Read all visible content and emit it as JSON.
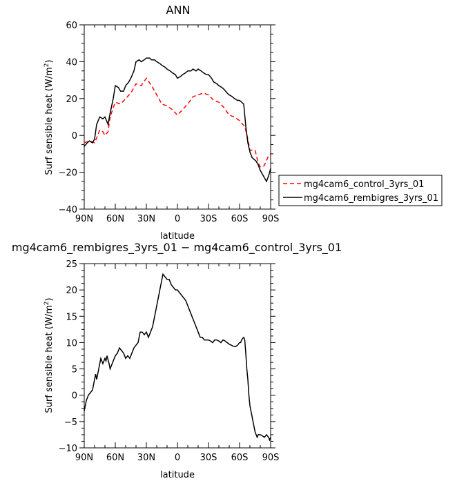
{
  "chart_data": [
    {
      "type": "line",
      "title": "ANN",
      "xlabel": "latitude",
      "ylabel": "Surf sensible heat (W/m²)",
      "ylabel_main": "Surf sensible heat (W/m",
      "ylabel_sup": "2",
      "ylabel_close": ")",
      "xlim": [
        90,
        -90
      ],
      "ylim": [
        -40,
        60
      ],
      "x_ticks": [
        90,
        60,
        30,
        0,
        -30,
        -60,
        -90
      ],
      "x_tick_labels": [
        "90N",
        "60N",
        "30N",
        "0",
        "30S",
        "60S",
        "90S"
      ],
      "y_ticks": [
        -40,
        -20,
        0,
        20,
        40,
        60
      ],
      "y_tick_labels": [
        "−40",
        "−20",
        "0",
        "20",
        "40",
        "60"
      ],
      "legend_position": "right",
      "series": [
        {
          "name": "mg4cam6_control_3yrs_01",
          "color": "#ff0000",
          "dash": "dashed",
          "x": [
            90,
            85,
            80,
            77,
            75,
            72,
            70,
            67,
            65,
            62,
            60,
            55,
            50,
            45,
            40,
            35,
            30,
            25,
            20,
            15,
            10,
            5,
            0,
            -5,
            -10,
            -15,
            -20,
            -25,
            -30,
            -35,
            -40,
            -45,
            -50,
            -55,
            -60,
            -63,
            -65,
            -68,
            -70,
            -72,
            -75,
            -78,
            -80,
            -83,
            -85,
            -88,
            -90
          ],
          "y": [
            -4,
            -3,
            -4,
            0,
            3,
            2,
            0,
            2,
            10,
            15,
            18,
            17,
            20,
            23,
            28,
            27,
            31,
            27,
            22,
            17,
            16,
            14,
            11,
            14,
            17,
            21,
            22,
            23,
            22,
            19,
            18,
            15,
            11,
            10,
            8,
            6,
            5,
            -2,
            -8,
            -8,
            -8,
            -15,
            -17,
            -17,
            -15,
            -11,
            -10
          ]
        },
        {
          "name": "mg4cam6_rembigres_3yrs_01",
          "color": "#000000",
          "dash": "solid",
          "x": [
            90,
            87,
            85,
            82,
            80,
            78,
            75,
            72,
            70,
            67,
            65,
            62,
            60,
            57,
            55,
            52,
            50,
            47,
            45,
            42,
            40,
            37,
            35,
            32,
            30,
            27,
            25,
            22,
            20,
            17,
            15,
            12,
            10,
            7,
            5,
            2,
            0,
            -3,
            -5,
            -8,
            -10,
            -13,
            -15,
            -18,
            -20,
            -23,
            -25,
            -28,
            -30,
            -33,
            -35,
            -38,
            -40,
            -43,
            -45,
            -48,
            -50,
            -53,
            -55,
            -58,
            -60,
            -62,
            -64,
            -66,
            -68,
            -70,
            -72,
            -74,
            -76,
            -78,
            -80,
            -82,
            -84,
            -86,
            -88,
            -90
          ],
          "y": [
            -6,
            -4,
            -3,
            -4,
            -2,
            6,
            10,
            9,
            10,
            6,
            12,
            20,
            27,
            26,
            24,
            24,
            27,
            29,
            31,
            35,
            40,
            41,
            40,
            41,
            42,
            42,
            41,
            41,
            40,
            39,
            38,
            37,
            36,
            35,
            34,
            33,
            31,
            32,
            33,
            34,
            35,
            35,
            36,
            35,
            36,
            35,
            34,
            33,
            33,
            31,
            29,
            28,
            27,
            26,
            25,
            23,
            22,
            21,
            20,
            19,
            19,
            18,
            17,
            5,
            -4,
            -9,
            -12,
            -13,
            -14,
            -16,
            -19,
            -21,
            -23,
            -25,
            -22,
            -18
          ]
        }
      ]
    },
    {
      "type": "line",
      "title": "mg4cam6_rembigres_3yrs_01 − mg4cam6_control_3yrs_01",
      "xlabel": "latitude",
      "ylabel": "Surf sensible heat (W/m²)",
      "ylabel_main": "Surf sensible heat (W/m",
      "ylabel_sup": "2",
      "ylabel_close": ")",
      "xlim": [
        90,
        -90
      ],
      "ylim": [
        -10,
        25
      ],
      "x_ticks": [
        90,
        60,
        30,
        0,
        -30,
        -60,
        -90
      ],
      "x_tick_labels": [
        "90N",
        "60N",
        "30N",
        "0",
        "30S",
        "60S",
        "90S"
      ],
      "y_ticks": [
        -10,
        -5,
        0,
        5,
        10,
        15,
        20,
        25
      ],
      "y_tick_labels": [
        "−10",
        "−5",
        "0",
        "5",
        "10",
        "15",
        "20",
        "25"
      ],
      "series": [
        {
          "color": "#000000",
          "dash": "solid",
          "x": [
            90,
            88,
            86,
            84,
            82,
            80,
            79,
            78,
            77,
            76,
            74,
            72,
            70,
            69,
            68,
            66,
            65,
            63,
            61,
            60,
            58,
            56,
            54,
            52,
            50,
            48,
            46,
            44,
            42,
            40,
            38,
            36,
            34,
            32,
            30,
            28,
            26,
            24,
            22,
            20,
            19,
            18,
            17,
            16,
            15,
            14,
            12,
            10,
            8,
            6,
            4,
            2,
            0,
            -2,
            -4,
            -6,
            -8,
            -10,
            -12,
            -14,
            -16,
            -18,
            -20,
            -22,
            -24,
            -26,
            -28,
            -30,
            -32,
            -34,
            -36,
            -38,
            -40,
            -42,
            -44,
            -46,
            -48,
            -50,
            -52,
            -54,
            -56,
            -58,
            -60,
            -61,
            -62,
            -63,
            -64,
            -65,
            -66,
            -67,
            -68,
            -69,
            -70,
            -71,
            -72,
            -73,
            -74,
            -75,
            -76,
            -77,
            -78,
            -80,
            -82,
            -84,
            -86,
            -88,
            -89,
            -90
          ],
          "y": [
            -3,
            -1,
            0,
            0.5,
            1,
            3,
            4,
            3,
            4,
            5,
            7,
            6,
            7,
            6.5,
            7.5,
            6,
            5,
            6,
            7,
            7.5,
            8,
            9,
            8.5,
            8,
            7,
            7.5,
            7,
            8,
            9,
            9.5,
            10,
            12,
            12,
            11.5,
            12,
            11,
            12,
            13,
            15,
            17,
            18,
            19,
            20,
            21,
            22,
            23,
            22.5,
            22,
            22,
            21,
            20.5,
            20,
            20,
            19.5,
            19,
            18.5,
            18,
            17,
            16,
            15,
            14,
            13,
            12,
            11,
            11,
            10.5,
            10.5,
            10.5,
            10.3,
            10,
            10.5,
            10.5,
            10.3,
            10,
            10.5,
            10.3,
            10,
            9.7,
            9.5,
            9.3,
            9.2,
            9.5,
            10,
            10,
            10.5,
            10.8,
            11,
            10.5,
            8,
            5,
            3,
            0,
            -2,
            -3,
            -4,
            -5,
            -6,
            -7,
            -7.5,
            -8,
            -7.5,
            -7.5,
            -7.7,
            -8,
            -7.5,
            -8,
            -8.5,
            -8
          ]
        }
      ]
    }
  ]
}
